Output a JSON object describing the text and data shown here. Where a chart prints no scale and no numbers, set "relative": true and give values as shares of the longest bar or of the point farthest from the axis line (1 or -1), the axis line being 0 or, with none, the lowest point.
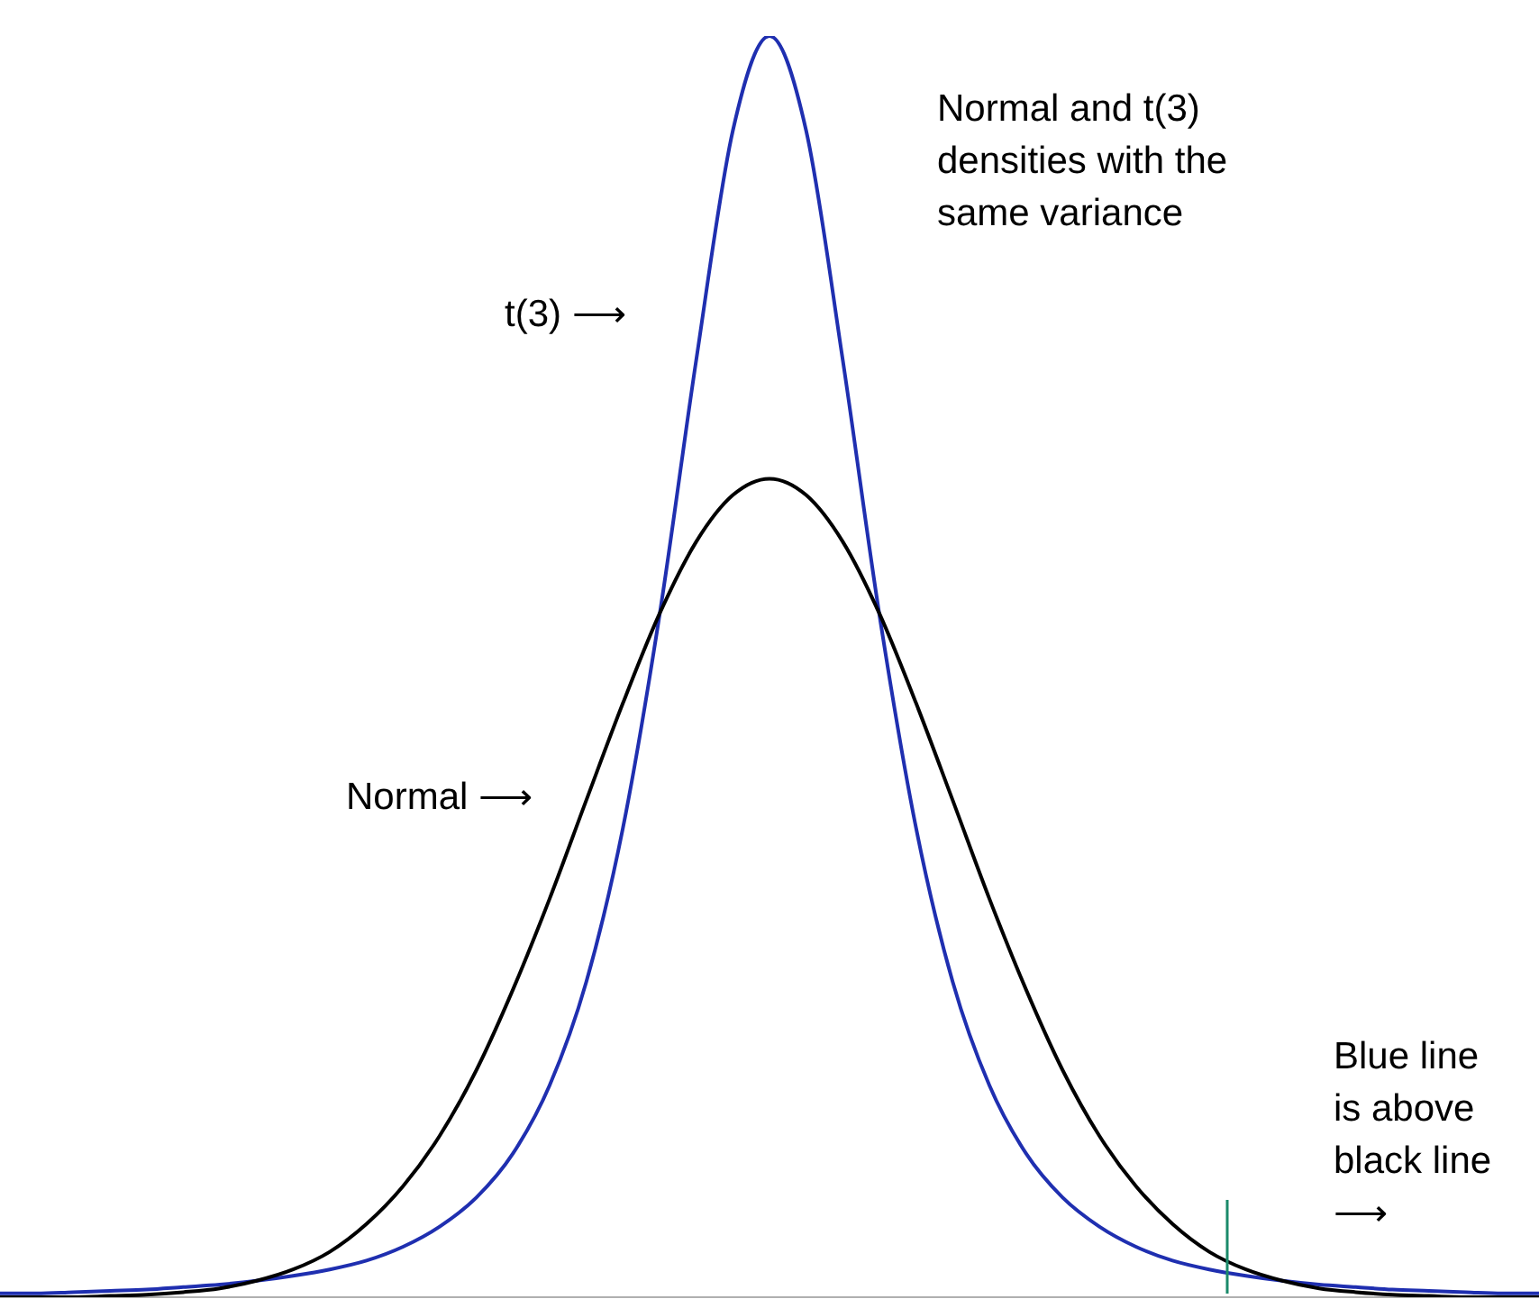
{
  "chart_data": {
    "type": "line",
    "relative": true,
    "legend": false,
    "grid": false,
    "marker": "none",
    "categories": [
      null,
      null,
      null,
      null,
      null,
      null,
      null,
      null,
      null,
      null,
      null,
      null,
      null,
      null,
      null,
      null,
      null,
      null,
      null,
      null,
      null,
      null,
      null,
      null,
      null,
      null,
      null,
      null,
      null,
      null,
      null,
      null,
      null,
      null,
      null,
      null,
      null,
      null,
      null,
      null,
      null,
      null,
      null
    ],
    "series": [
      {
        "color": "#000000",
        "values": [
          0,
          0,
          0,
          0.001,
          0.002,
          0.004,
          0.007,
          0.013,
          0.022,
          0.036,
          0.058,
          0.088,
          0.128,
          0.18,
          0.244,
          0.316,
          0.394,
          0.471,
          0.542,
          0.599,
          0.636,
          0.649,
          0.636,
          0.599,
          0.542,
          0.471,
          0.394,
          0.316,
          0.244,
          0.18,
          0.128,
          0.088,
          0.058,
          0.036,
          0.022,
          0.013,
          0.007,
          0.004,
          0.002,
          0.001,
          0,
          0,
          0
        ]
      },
      {
        "color": "#1f2fb0",
        "values": [
          0.003,
          0.003,
          0.004,
          0.005,
          0.006,
          0.008,
          0.01,
          0.013,
          0.017,
          0.022,
          0.029,
          0.04,
          0.056,
          0.079,
          0.114,
          0.168,
          0.25,
          0.372,
          0.541,
          0.743,
          0.925,
          1,
          0.925,
          0.743,
          0.541,
          0.372,
          0.25,
          0.168,
          0.114,
          0.079,
          0.056,
          0.04,
          0.029,
          0.022,
          0.017,
          0.013,
          0.01,
          0.008,
          0.006,
          0.005,
          0.004,
          0.003,
          0.003
        ]
      }
    ],
    "annotations": [
      "Normal and t(3) densities with the same variance",
      "t(3) ⟶",
      "Normal ⟶",
      "Blue line is above black line ⟶"
    ]
  }
}
